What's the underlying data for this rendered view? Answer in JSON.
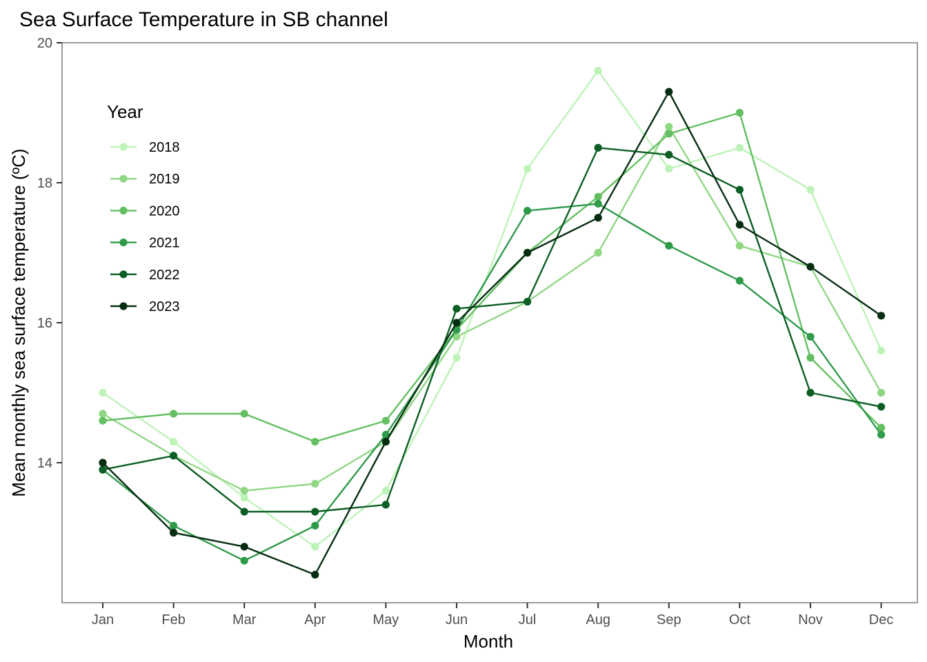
{
  "chart_data": {
    "type": "line",
    "title": "Sea Surface Temperature in SB channel",
    "xlabel": "Month",
    "ylabel": "Mean monthly sea surface temperature (ºC)",
    "categories": [
      "Jan",
      "Feb",
      "Mar",
      "Apr",
      "May",
      "Jun",
      "Jul",
      "Aug",
      "Sep",
      "Oct",
      "Nov",
      "Dec"
    ],
    "ylim": [
      12,
      20
    ],
    "yticks": [
      14,
      16,
      18,
      20
    ],
    "grid": false,
    "legend": {
      "title": "Year",
      "placement": "top-left-inside"
    },
    "series": [
      {
        "name": "2018",
        "color": "#bef3b8",
        "values": [
          15.0,
          14.3,
          13.5,
          12.8,
          13.6,
          15.5,
          18.2,
          19.6,
          18.2,
          18.5,
          17.9,
          15.6
        ]
      },
      {
        "name": "2019",
        "color": "#90d784",
        "values": [
          14.7,
          14.1,
          13.6,
          13.7,
          14.3,
          15.8,
          16.3,
          17.0,
          18.8,
          17.1,
          16.8,
          15.0
        ]
      },
      {
        "name": "2020",
        "color": "#63bf61",
        "values": [
          14.6,
          14.7,
          14.7,
          14.3,
          14.6,
          15.9,
          17.0,
          17.8,
          18.7,
          19.0,
          15.5,
          14.5
        ]
      },
      {
        "name": "2021",
        "color": "#2f9a4a",
        "values": [
          13.9,
          13.1,
          12.6,
          13.1,
          14.4,
          15.9,
          17.6,
          17.7,
          17.1,
          16.6,
          15.8,
          14.4
        ]
      },
      {
        "name": "2022",
        "color": "#0c5e24",
        "values": [
          13.9,
          14.1,
          13.3,
          13.3,
          13.4,
          16.2,
          16.3,
          18.5,
          18.4,
          17.9,
          15.0,
          14.8
        ]
      },
      {
        "name": "2023",
        "color": "#062d12",
        "values": [
          14.0,
          13.0,
          12.8,
          12.4,
          14.3,
          16.0,
          17.0,
          17.5,
          19.3,
          17.4,
          16.8,
          16.1
        ]
      }
    ]
  }
}
